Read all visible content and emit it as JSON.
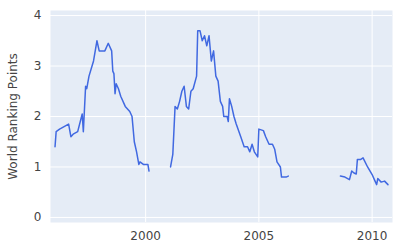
{
  "chart_data": {
    "type": "line",
    "y_label": "World Ranking Points",
    "x": [
      1996.0,
      1996.05,
      1996.2,
      1996.4,
      1996.6,
      1996.7,
      1996.8,
      1997.0,
      1997.2,
      1997.25,
      1997.35,
      1997.4,
      1997.5,
      1997.7,
      1997.85,
      1997.95,
      1998.2,
      1998.35,
      1998.5,
      1998.55,
      1998.6,
      1998.65,
      1998.7,
      1998.8,
      1998.9,
      1999.1,
      1999.3,
      1999.4,
      1999.5,
      1999.6,
      1999.7,
      1999.75,
      1999.9,
      2000.1,
      2000.15,
      2000.5,
      2001.1,
      2001.2,
      2001.3,
      2001.4,
      2001.5,
      2001.6,
      2001.7,
      2001.8,
      2001.9,
      2002.0,
      2002.1,
      2002.25,
      2002.3,
      2002.4,
      2002.5,
      2002.6,
      2002.7,
      2002.8,
      2002.9,
      2003.0,
      2003.1,
      2003.2,
      2003.3,
      2003.4,
      2003.45,
      2003.6,
      2003.65,
      2003.7,
      2003.8,
      2003.9,
      2004.0,
      2004.2,
      2004.35,
      2004.5,
      2004.6,
      2004.7,
      2004.8,
      2004.95,
      2005.0,
      2005.2,
      2005.3,
      2005.45,
      2005.6,
      2005.7,
      2005.8,
      2005.95,
      2006.0,
      2006.2,
      2006.3,
      2007.0,
      2008.6,
      2008.8,
      2009.0,
      2009.1,
      2009.2,
      2009.3,
      2009.35,
      2009.5,
      2009.6,
      2009.8,
      2010.0,
      2010.1,
      2010.2,
      2010.25,
      2010.4,
      2010.55,
      2010.7
    ],
    "values": [
      1.4,
      1.7,
      1.75,
      1.8,
      1.85,
      1.6,
      1.65,
      1.7,
      2.05,
      1.7,
      2.6,
      2.55,
      2.8,
      3.1,
      3.5,
      3.3,
      3.3,
      3.45,
      3.3,
      2.9,
      2.85,
      2.45,
      2.65,
      2.55,
      2.4,
      2.2,
      2.1,
      2.0,
      1.5,
      1.3,
      1.05,
      1.1,
      1.05,
      1.05,
      0.92,
      null,
      1.0,
      1.25,
      2.2,
      2.15,
      2.3,
      2.5,
      2.6,
      2.2,
      2.15,
      2.5,
      2.55,
      2.8,
      3.7,
      3.7,
      3.5,
      3.6,
      3.4,
      3.6,
      3.1,
      3.3,
      2.8,
      2.7,
      2.3,
      2.2,
      2.0,
      2.0,
      1.9,
      2.35,
      2.2,
      2.0,
      1.85,
      1.6,
      1.4,
      1.4,
      1.3,
      1.45,
      1.3,
      1.2,
      1.75,
      1.72,
      1.6,
      1.45,
      1.45,
      1.35,
      1.1,
      1.0,
      0.8,
      0.8,
      0.82,
      null,
      0.82,
      0.8,
      0.75,
      0.92,
      0.88,
      0.86,
      1.15,
      1.15,
      1.18,
      1.0,
      0.85,
      0.75,
      0.65,
      0.77,
      0.7,
      0.72,
      0.65
    ],
    "color": "#4169e1",
    "xlim": [
      1995.8,
      2010.9
    ],
    "xticks": [
      2000,
      2005,
      2010
    ],
    "ylim": [
      -0.1,
      4.1
    ],
    "yticks": [
      0,
      1,
      2,
      3,
      4
    ],
    "grid": true
  }
}
